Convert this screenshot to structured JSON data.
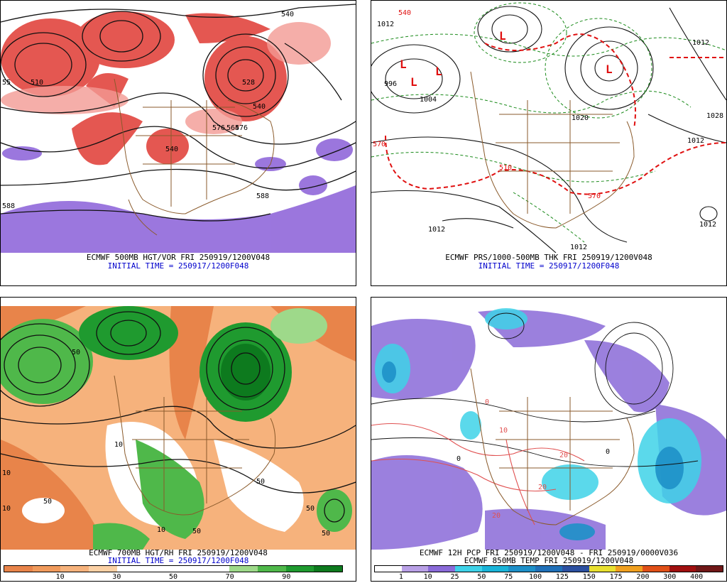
{
  "panels": [
    {
      "id": "hgt-vor-500",
      "caption": "ECMWF 500MB HGT/VOR FRI 250919/1200V048",
      "init": "INITIAL TIME = 250917/1200F048",
      "contour_labels": [
        "540",
        "576",
        "564",
        "540",
        "588",
        "588",
        "528",
        "510",
        "55",
        "540",
        "576"
      ]
    },
    {
      "id": "prs-thk",
      "caption": "ECMWF PRS/1000-500MB THK FRI 250919/1200V048",
      "init": "INITIAL TIME = 250917/1200F048",
      "contour_labels": [
        "1012",
        "1004",
        "996",
        "1012",
        "1028",
        "1012",
        "1020",
        "1012",
        "1012",
        "570",
        "540",
        "570",
        "510",
        "1012"
      ]
    },
    {
      "id": "hgt-rh-700",
      "caption": "ECMWF 700MB HGT/RH FRI 250919/1200V048",
      "init": "INITIAL TIME = 250917/1200F048",
      "contour_labels": [
        "50",
        "10",
        "50",
        "10",
        "50",
        "10",
        "50",
        "50",
        "10",
        "50"
      ],
      "colorbar": {
        "colors": [
          "#e8844a",
          "#f09a5c",
          "#f6b27c",
          "#fbd0a4",
          "#ffffff",
          "#ffffff",
          "#ffffff",
          "#ffffff",
          "#9ed98a",
          "#4fb84a",
          "#1f9a2f",
          "#0d7a1e"
        ],
        "ticks": [
          "10",
          "30",
          "50",
          "70",
          "90"
        ]
      }
    },
    {
      "id": "pcp-temp-850",
      "caption": "ECMWF 12H PCP FRI 250919/1200V048 - FRI 250919/0000V036",
      "caption2": "ECMWF 850MB TEMP FRI 250919/1200V048",
      "contour_labels": [
        "0",
        "10",
        "20",
        "20",
        "0",
        "0",
        "20"
      ],
      "colorbar": {
        "colors": [
          "#ffffff",
          "#b9a0e6",
          "#8a6ad8",
          "#3ed2e8",
          "#1ab4d8",
          "#1e90c8",
          "#2070b8",
          "#2c50a0",
          "#e8e030",
          "#f0a020",
          "#e05018",
          "#a01010",
          "#701818"
        ],
        "ticks": [
          "1",
          "10",
          "25",
          "50",
          "75",
          "100",
          "125",
          "150",
          "175",
          "200",
          "300",
          "400"
        ]
      }
    }
  ]
}
